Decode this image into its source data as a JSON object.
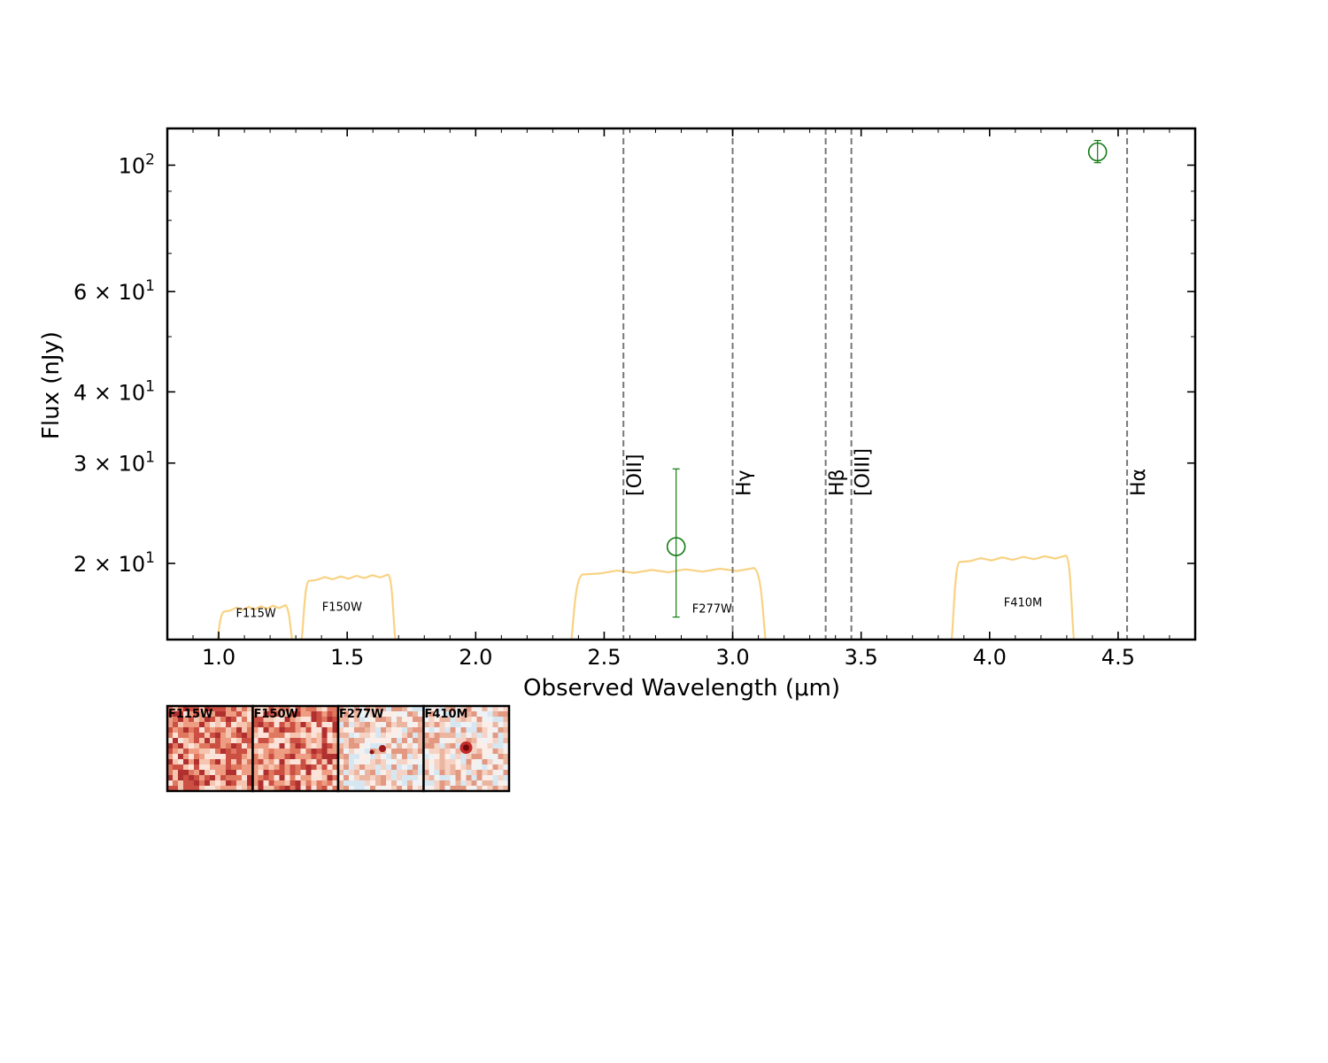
{
  "chart_data": {
    "type": "scatter",
    "xlabel": "Observed Wavelength (μm)",
    "ylabel": "Flux (nJy)",
    "xlim": [
      0.8,
      4.8
    ],
    "ylim": [
      14.7,
      116
    ],
    "yscale": "log",
    "x_ticks": [
      {
        "value": 1.0,
        "label": "1.0"
      },
      {
        "value": 1.5,
        "label": "1.5"
      },
      {
        "value": 2.0,
        "label": "2.0"
      },
      {
        "value": 2.5,
        "label": "2.5"
      },
      {
        "value": 3.0,
        "label": "3.0"
      },
      {
        "value": 3.5,
        "label": "3.5"
      },
      {
        "value": 4.0,
        "label": "4.0"
      },
      {
        "value": 4.5,
        "label": "4.5"
      }
    ],
    "y_ticks": [
      {
        "value": 20,
        "mantissa": "2 × 10",
        "exp": "1"
      },
      {
        "value": 30,
        "mantissa": "3 × 10",
        "exp": "1"
      },
      {
        "value": 40,
        "mantissa": "4 × 10",
        "exp": "1"
      },
      {
        "value": 60,
        "mantissa": "6 × 10",
        "exp": "1"
      },
      {
        "value": 100,
        "mantissa": "10",
        "exp": "2"
      }
    ],
    "points": [
      {
        "x": 2.78,
        "y": 21.4,
        "yerr_low": 16.1,
        "yerr_high": 29.3
      },
      {
        "x": 4.42,
        "y": 105.5,
        "yerr_low": 101.0,
        "yerr_high": 110.5
      }
    ],
    "emission_lines": [
      {
        "label": "[OII]",
        "x": 2.575
      },
      {
        "label": "Hγ",
        "x": 3.0
      },
      {
        "label": "Hβ",
        "x": 3.362
      },
      {
        "label": "[OIII]",
        "x": 3.462
      },
      {
        "label": "Hα",
        "x": 4.535
      }
    ],
    "filters": [
      {
        "name": "F115W",
        "start": 1.0,
        "end": 1.28,
        "top": 16.7,
        "label_x": 1.145,
        "label_y": 16.1
      },
      {
        "name": "F150W",
        "start": 1.33,
        "end": 1.68,
        "top": 18.9,
        "label_x": 1.48,
        "label_y": 16.5
      },
      {
        "name": "F277W",
        "start": 2.38,
        "end": 3.12,
        "top": 19.4,
        "label_x": 2.92,
        "label_y": 16.4
      },
      {
        "name": "F410M",
        "start": 3.86,
        "end": 4.32,
        "top": 20.4,
        "label_x": 4.13,
        "label_y": 16.8
      }
    ],
    "cutouts": [
      {
        "name": "F115W"
      },
      {
        "name": "F150W"
      },
      {
        "name": "F277W"
      },
      {
        "name": "F410M"
      }
    ],
    "colors": {
      "points": "#117a11",
      "filters": "#f9d283",
      "lines": "#777777"
    },
    "grid": false,
    "legend": "none"
  }
}
